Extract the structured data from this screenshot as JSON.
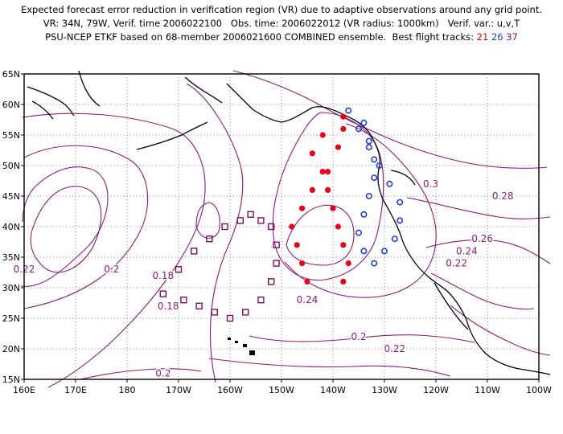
{
  "header": {
    "line1": "Expected forecast error reduction in verification region (VR) due to adaptive observations around any grid point.",
    "line2": "VR: 34N, 79W, Verif. time 2006022100   Obs. time: 2006022012 (VR radius: 1000km)   Verif. var.: u,v,T",
    "line3": "PSU-NCEP ETKF based on 68-member 2006021600 COMBINED ensemble.  Best flight tracks: ",
    "tracks": [
      {
        "label": "21",
        "color": "#e8001c"
      },
      {
        "label": "26",
        "color": "#1f3fd8"
      },
      {
        "label": "37",
        "color": "#7a1060"
      }
    ]
  },
  "map": {
    "lon_range": [
      160,
      260
    ],
    "lat_range": [
      15,
      65
    ],
    "frame_color": "#000000",
    "contour_color": "#8a1a7a",
    "grid_color": "#8a8a8a",
    "x_ticks": [
      "160E",
      "170E",
      "180",
      "170W",
      "160W",
      "150W",
      "140W",
      "130W",
      "120W",
      "110W",
      "100W"
    ],
    "y_ticks": [
      "15N",
      "20N",
      "25N",
      "30N",
      "35N",
      "40N",
      "45N",
      "50N",
      "55N",
      "60N",
      "65N"
    ]
  },
  "contour_labels": [
    {
      "text": "0.22",
      "lon": 160,
      "lat": 33
    },
    {
      "text": "0.2",
      "lon": 177,
      "lat": 33
    },
    {
      "text": "0.18",
      "lon": 187,
      "lat": 32
    },
    {
      "text": "0.18",
      "lon": 188,
      "lat": 27
    },
    {
      "text": "0.2",
      "lon": 187,
      "lat": 16
    },
    {
      "text": "0.24",
      "lon": 215,
      "lat": 28
    },
    {
      "text": "0.2",
      "lon": 225,
      "lat": 22
    },
    {
      "text": "0.22",
      "lon": 232,
      "lat": 20
    },
    {
      "text": "0.22",
      "lon": 244,
      "lat": 34
    },
    {
      "text": "0.24",
      "lon": 246,
      "lat": 36
    },
    {
      "text": "0.26",
      "lon": 249,
      "lat": 38
    },
    {
      "text": "0.3",
      "lon": 239,
      "lat": 47
    },
    {
      "text": "0.28",
      "lon": 253,
      "lat": 45
    }
  ],
  "markers": {
    "track21": [
      [
        222,
        58
      ],
      [
        218,
        55
      ],
      [
        216,
        52
      ],
      [
        218,
        49
      ],
      [
        216,
        46
      ],
      [
        214,
        43
      ],
      [
        212,
        40
      ],
      [
        213,
        37
      ],
      [
        214,
        34
      ],
      [
        215,
        31
      ],
      [
        222,
        31
      ],
      [
        223,
        34
      ],
      [
        222,
        37
      ],
      [
        221,
        40
      ],
      [
        220,
        43
      ],
      [
        219,
        46
      ],
      [
        219,
        49
      ],
      [
        221,
        53
      ],
      [
        222,
        56
      ]
    ],
    "track26": [
      [
        223,
        59
      ],
      [
        225,
        56
      ],
      [
        227,
        53
      ],
      [
        229,
        50
      ],
      [
        231,
        47
      ],
      [
        233,
        44
      ],
      [
        233,
        41
      ],
      [
        232,
        38
      ],
      [
        230,
        36
      ],
      [
        228,
        34
      ],
      [
        226,
        36
      ],
      [
        225,
        39
      ],
      [
        226,
        42
      ],
      [
        227,
        45
      ],
      [
        228,
        48
      ],
      [
        228,
        51
      ],
      [
        227,
        54
      ],
      [
        226,
        57
      ]
    ],
    "track37": [
      [
        187,
        29
      ],
      [
        190,
        33
      ],
      [
        193,
        36
      ],
      [
        196,
        38
      ],
      [
        199,
        40
      ],
      [
        202,
        41
      ],
      [
        204,
        42
      ],
      [
        206,
        41
      ],
      [
        208,
        40
      ],
      [
        209,
        37
      ],
      [
        209,
        34
      ],
      [
        208,
        31
      ],
      [
        206,
        28
      ],
      [
        203,
        26
      ],
      [
        200,
        25
      ],
      [
        197,
        26
      ],
      [
        194,
        27
      ],
      [
        191,
        28
      ]
    ]
  }
}
